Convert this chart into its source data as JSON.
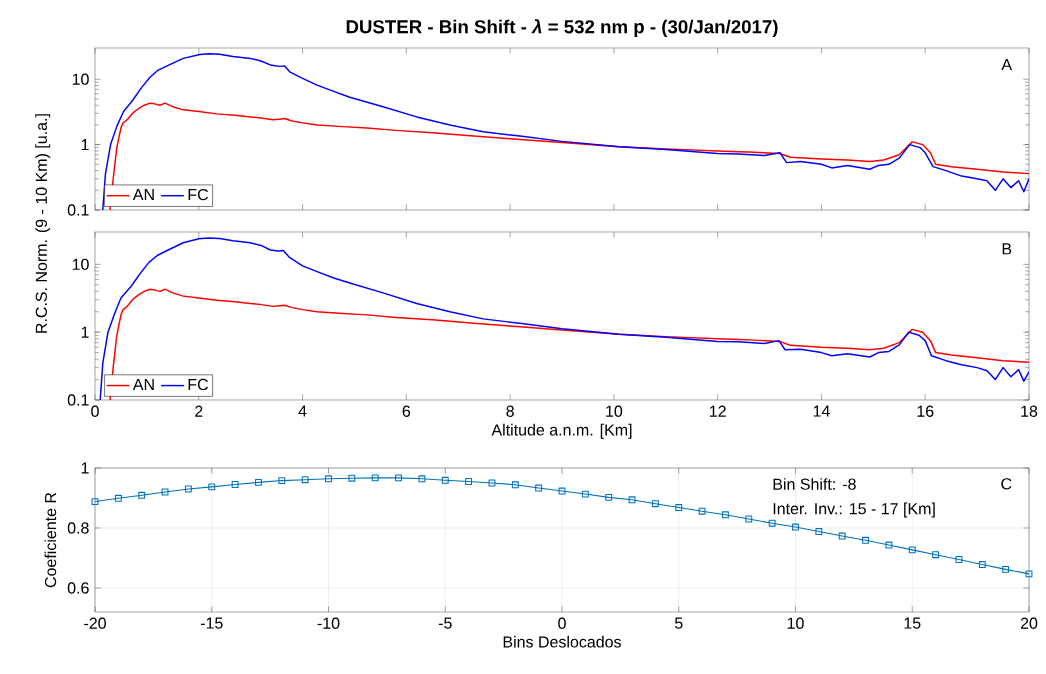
{
  "chart_data": [
    {
      "type": "line",
      "title": "DUSTER - Bin Shift - *λ* = 532 nm p - (30/Jan/2017)",
      "xlim": [
        0,
        18
      ],
      "ylim": [
        0.1,
        30
      ],
      "xticks": [
        0,
        2,
        4,
        6,
        8,
        10,
        12,
        14,
        16,
        18
      ],
      "yticks": [
        0.1,
        1,
        10
      ],
      "log": true,
      "legend": "bottom left",
      "tick_labels": "y",
      "annotations": [
        "A"
      ],
      "series": [
        {
          "name": "AN",
          "color": "#ff0000",
          "x": [
            0.29,
            0.35,
            0.42,
            0.5,
            0.54,
            0.62,
            0.73,
            0.85,
            0.95,
            1.06,
            1.15,
            1.25,
            1.35,
            1.5,
            1.7,
            2.0,
            2.35,
            2.7,
            2.99,
            3.2,
            3.43,
            3.55,
            3.65,
            3.8,
            4.0,
            4.28,
            4.7,
            5.24,
            5.8,
            6.5,
            7.3,
            8.19,
            9.0,
            10.1,
            11.0,
            12.0,
            12.4,
            12.6,
            13.2,
            13.4,
            14.0,
            14.5,
            14.93,
            15.2,
            15.5,
            15.75,
            15.95,
            16.1,
            16.2,
            16.5,
            17.0,
            17.5,
            18.0
          ],
          "values": [
            0.1,
            0.3,
            0.9,
            1.8,
            2.15,
            2.4,
            3.05,
            3.6,
            4.0,
            4.3,
            4.2,
            4.0,
            4.3,
            3.8,
            3.4,
            3.2,
            2.95,
            2.8,
            2.65,
            2.55,
            2.4,
            2.45,
            2.5,
            2.3,
            2.15,
            2.0,
            1.9,
            1.8,
            1.65,
            1.52,
            1.35,
            1.2,
            1.08,
            0.93,
            0.86,
            0.8,
            0.78,
            0.77,
            0.73,
            0.64,
            0.6,
            0.58,
            0.55,
            0.58,
            0.7,
            1.1,
            1.0,
            0.75,
            0.5,
            0.46,
            0.42,
            0.38,
            0.36
          ]
        },
        {
          "name": "FC",
          "color": "#0000ff",
          "x": [
            0.15,
            0.2,
            0.3,
            0.42,
            0.55,
            0.73,
            0.9,
            1.06,
            1.2,
            1.39,
            1.7,
            2.02,
            2.2,
            2.4,
            2.66,
            2.99,
            3.2,
            3.4,
            3.56,
            3.65,
            3.76,
            4.0,
            4.28,
            4.6,
            4.91,
            5.55,
            6.2,
            6.84,
            7.48,
            8.19,
            9.0,
            10.1,
            11.0,
            12.0,
            12.4,
            12.9,
            13.2,
            13.33,
            13.6,
            14.0,
            14.2,
            14.5,
            14.93,
            15.1,
            15.3,
            15.5,
            15.7,
            15.9,
            16.0,
            16.15,
            16.4,
            16.7,
            17.0,
            17.19,
            17.35,
            17.5,
            17.65,
            17.8,
            17.9,
            18.0
          ],
          "values": [
            0.1,
            0.35,
            1.0,
            1.9,
            3.2,
            4.8,
            7.5,
            10.7,
            13.5,
            16.0,
            20.8,
            23.9,
            24.5,
            24.0,
            22.3,
            20.8,
            19.0,
            16.3,
            15.7,
            16.0,
            12.8,
            10.3,
            8.1,
            6.5,
            5.3,
            3.8,
            2.65,
            2.0,
            1.57,
            1.35,
            1.12,
            0.93,
            0.84,
            0.73,
            0.72,
            0.68,
            0.75,
            0.53,
            0.55,
            0.5,
            0.44,
            0.48,
            0.42,
            0.48,
            0.5,
            0.62,
            1.0,
            0.9,
            0.75,
            0.46,
            0.4,
            0.33,
            0.3,
            0.28,
            0.2,
            0.3,
            0.22,
            0.28,
            0.19,
            0.3
          ]
        }
      ]
    },
    {
      "type": "line",
      "xlabel": "Altitude a.n.m. [Km]",
      "ylabel": "R.C.S. Norm. (9 - 10 Km) [u.a.]",
      "xlim": [
        0,
        18
      ],
      "ylim": [
        0.1,
        30
      ],
      "xticks": [
        0,
        2,
        4,
        6,
        8,
        10,
        12,
        14,
        16,
        18
      ],
      "yticks": [
        0.1,
        1,
        10
      ],
      "log": true,
      "legend": "bottom left",
      "annotations": [
        "B"
      ],
      "series": [
        {
          "name": "AN",
          "color": "#ff0000",
          "x": [
            0.29,
            0.35,
            0.42,
            0.5,
            0.54,
            0.62,
            0.73,
            0.85,
            0.95,
            1.06,
            1.15,
            1.25,
            1.35,
            1.5,
            1.7,
            2.0,
            2.35,
            2.7,
            2.99,
            3.2,
            3.43,
            3.55,
            3.65,
            3.8,
            4.0,
            4.28,
            4.7,
            5.24,
            5.8,
            6.5,
            7.3,
            8.19,
            9.0,
            10.1,
            11.0,
            12.0,
            12.4,
            12.6,
            13.2,
            13.4,
            14.0,
            14.5,
            14.93,
            15.2,
            15.5,
            15.75,
            15.95,
            16.1,
            16.2,
            16.5,
            17.0,
            17.5,
            18.0
          ],
          "values": [
            0.1,
            0.3,
            0.9,
            1.8,
            2.15,
            2.4,
            3.05,
            3.6,
            4.0,
            4.3,
            4.2,
            4.0,
            4.3,
            3.8,
            3.4,
            3.2,
            2.95,
            2.8,
            2.65,
            2.55,
            2.4,
            2.45,
            2.5,
            2.3,
            2.15,
            2.0,
            1.9,
            1.8,
            1.65,
            1.52,
            1.35,
            1.2,
            1.08,
            0.93,
            0.86,
            0.8,
            0.78,
            0.77,
            0.73,
            0.64,
            0.6,
            0.58,
            0.55,
            0.58,
            0.7,
            1.1,
            1.0,
            0.75,
            0.5,
            0.46,
            0.42,
            0.38,
            0.36
          ]
        },
        {
          "name": "FC",
          "color": "#0000ff",
          "x": [
            0.1,
            0.15,
            0.25,
            0.38,
            0.5,
            0.7,
            0.88,
            1.04,
            1.2,
            1.39,
            1.7,
            2.0,
            2.18,
            2.4,
            2.66,
            2.99,
            3.2,
            3.38,
            3.54,
            3.63,
            3.74,
            4.0,
            4.28,
            4.6,
            4.91,
            5.55,
            6.2,
            6.84,
            7.48,
            8.19,
            9.0,
            10.1,
            11.0,
            12.0,
            12.4,
            12.9,
            13.18,
            13.3,
            13.6,
            14.0,
            14.2,
            14.5,
            14.93,
            15.1,
            15.3,
            15.5,
            15.68,
            15.88,
            16.0,
            16.12,
            16.4,
            16.7,
            17.0,
            17.19,
            17.35,
            17.5,
            17.65,
            17.8,
            17.9,
            18.0
          ],
          "values": [
            0.1,
            0.35,
            1.0,
            1.9,
            3.2,
            4.8,
            7.5,
            10.7,
            13.5,
            16.0,
            20.8,
            23.9,
            24.5,
            24.0,
            22.3,
            20.8,
            19.0,
            16.3,
            15.7,
            16.0,
            12.8,
            9.5,
            7.8,
            6.3,
            5.3,
            3.8,
            2.65,
            2.0,
            1.57,
            1.35,
            1.12,
            0.93,
            0.84,
            0.73,
            0.72,
            0.68,
            0.75,
            0.55,
            0.56,
            0.5,
            0.45,
            0.48,
            0.43,
            0.5,
            0.52,
            0.65,
            1.0,
            0.9,
            0.75,
            0.45,
            0.38,
            0.33,
            0.3,
            0.27,
            0.2,
            0.3,
            0.22,
            0.28,
            0.19,
            0.26
          ]
        }
      ]
    },
    {
      "type": "line",
      "xlabel": "Bins Deslocados",
      "ylabel": "Coeficiente R",
      "xlim": [
        -20,
        20
      ],
      "ylim": [
        0.52,
        1
      ],
      "xticks": [
        -20,
        -15,
        -10,
        -5,
        0,
        5,
        10,
        15,
        20
      ],
      "yticks": [
        0.6,
        0.8,
        1
      ],
      "grid": true,
      "marker": "square",
      "line_style": "solid",
      "annotations": [
        "Bin Shift: -8",
        "Inter. Inv.: 15 - 17 [Km]",
        "C"
      ],
      "series": [
        {
          "color": "#0072bd",
          "x": [
            -20,
            -19,
            -18,
            -17,
            -16,
            -15,
            -14,
            -13,
            -12,
            -11,
            -10,
            -9,
            -8,
            -7,
            -6,
            -5,
            -4,
            -3,
            -2,
            -1,
            0,
            1,
            2,
            3,
            4,
            5,
            6,
            7,
            8,
            9,
            10,
            11,
            12,
            13,
            14,
            15,
            16,
            17,
            18,
            19,
            20
          ],
          "values": [
            0.888,
            0.899,
            0.909,
            0.92,
            0.93,
            0.937,
            0.945,
            0.952,
            0.958,
            0.961,
            0.964,
            0.966,
            0.967,
            0.967,
            0.964,
            0.959,
            0.955,
            0.95,
            0.944,
            0.933,
            0.923,
            0.913,
            0.902,
            0.894,
            0.881,
            0.868,
            0.856,
            0.844,
            0.83,
            0.816,
            0.803,
            0.788,
            0.773,
            0.759,
            0.743,
            0.727,
            0.711,
            0.695,
            0.678,
            0.662,
            0.647
          ]
        }
      ]
    }
  ]
}
